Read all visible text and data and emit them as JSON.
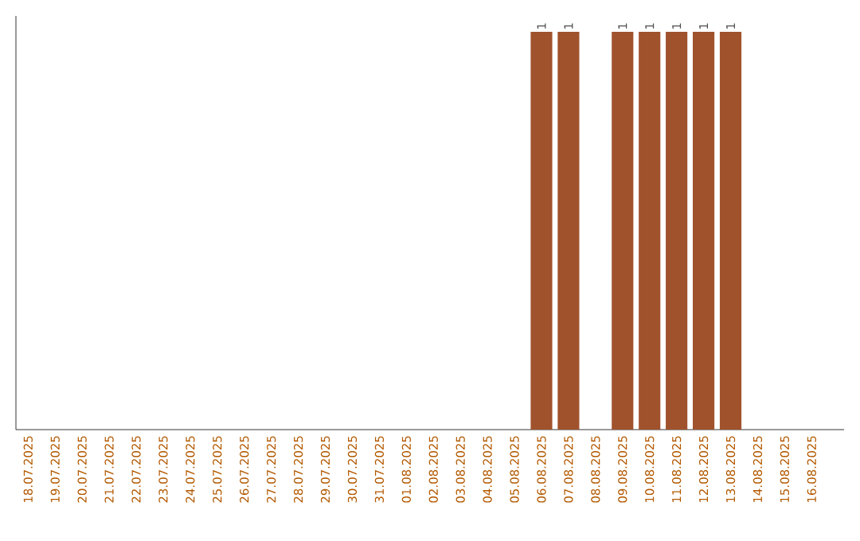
{
  "chart_data": {
    "type": "bar",
    "categories": [
      "18.07.2025",
      "19.07.2025",
      "20.07.2025",
      "21.07.2025",
      "22.07.2025",
      "23.07.2025",
      "24.07.2025",
      "25.07.2025",
      "26.07.2025",
      "27.07.2025",
      "28.07.2025",
      "29.07.2025",
      "30.07.2025",
      "31.07.2025",
      "01.08.2025",
      "02.08.2025",
      "03.08.2025",
      "04.08.2025",
      "05.08.2025",
      "06.08.2025",
      "07.08.2025",
      "08.08.2025",
      "09.08.2025",
      "10.08.2025",
      "11.08.2025",
      "12.08.2025",
      "13.08.2025",
      "14.08.2025",
      "15.08.2025",
      "16.08.2025"
    ],
    "values": [
      null,
      null,
      null,
      null,
      null,
      null,
      null,
      null,
      null,
      null,
      null,
      null,
      null,
      null,
      null,
      null,
      null,
      null,
      null,
      1,
      1,
      null,
      1,
      1,
      1,
      1,
      1,
      null,
      null,
      null
    ],
    "value_labels": [
      null,
      null,
      null,
      null,
      null,
      null,
      null,
      null,
      null,
      null,
      null,
      null,
      null,
      null,
      null,
      null,
      null,
      null,
      null,
      "1",
      "1",
      null,
      "1",
      "1",
      "1",
      "1",
      "1",
      null,
      null,
      null
    ],
    "color": "#a0522d"
  }
}
